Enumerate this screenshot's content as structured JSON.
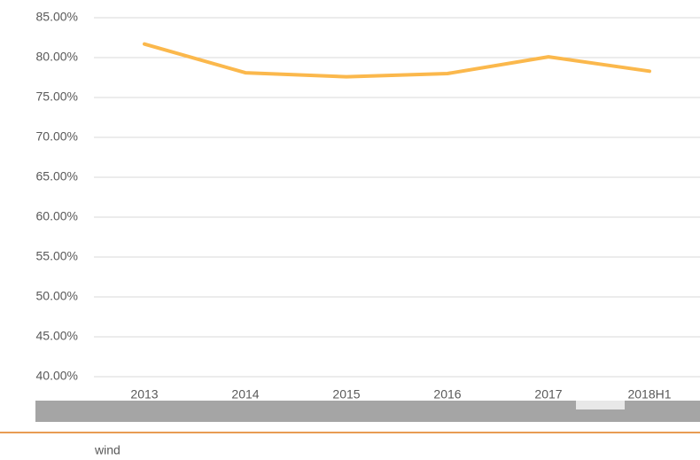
{
  "chart_data": {
    "type": "line",
    "categories": [
      "2013",
      "2014",
      "2015",
      "2016",
      "2017",
      "2018H1"
    ],
    "series": [
      {
        "name": "wind",
        "color": "#fbb84c",
        "values": [
          81.7,
          78.1,
          77.6,
          78.0,
          80.1,
          78.3
        ]
      }
    ],
    "ylim": [
      40,
      85
    ],
    "yticks": [
      {
        "value": 40,
        "label": "40.00%"
      },
      {
        "value": 45,
        "label": "45.00%"
      },
      {
        "value": 50,
        "label": "50.00%"
      },
      {
        "value": 55,
        "label": "55.00%"
      },
      {
        "value": 60,
        "label": "60.00%"
      },
      {
        "value": 65,
        "label": "65.00%"
      },
      {
        "value": 70,
        "label": "70.00%"
      },
      {
        "value": 75,
        "label": "75.00%"
      },
      {
        "value": 80,
        "label": "80.00%"
      },
      {
        "value": 85,
        "label": "85.00%"
      }
    ],
    "grid": true
  }
}
